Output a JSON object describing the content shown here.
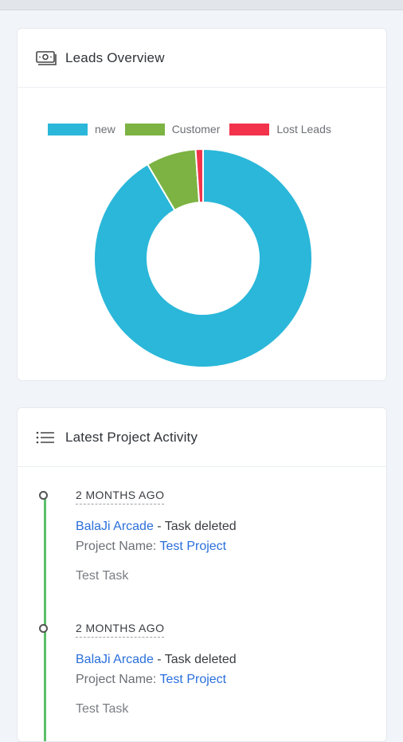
{
  "leads_overview": {
    "title": "Leads Overview",
    "icon": "money-icon",
    "legend": [
      {
        "label": "new",
        "color": "#2ab7d9"
      },
      {
        "label": "Customer",
        "color": "#7cb342"
      },
      {
        "label": "Lost Leads",
        "color": "#f2334b"
      }
    ],
    "chart_data": {
      "type": "pie",
      "categories": [
        "new",
        "Customer",
        "Lost Leads"
      ],
      "values": [
        91.5,
        7.4,
        1.1
      ],
      "colors": [
        "#2ab7d9",
        "#7cb342",
        "#f2334b"
      ],
      "legend_position": "top"
    }
  },
  "activity": {
    "title": "Latest Project Activity",
    "icon": "list-icon",
    "entries": [
      {
        "time": "2 MONTHS AGO",
        "user": "BalaJi Arcade",
        "action": " - Task deleted",
        "project_label": "Project Name: ",
        "project_name": "Test Project",
        "task": "Test Task"
      },
      {
        "time": "2 MONTHS AGO",
        "user": "BalaJi Arcade",
        "action": " - Task deleted",
        "project_label": "Project Name: ",
        "project_name": "Test Project",
        "task": "Test Task"
      }
    ]
  }
}
